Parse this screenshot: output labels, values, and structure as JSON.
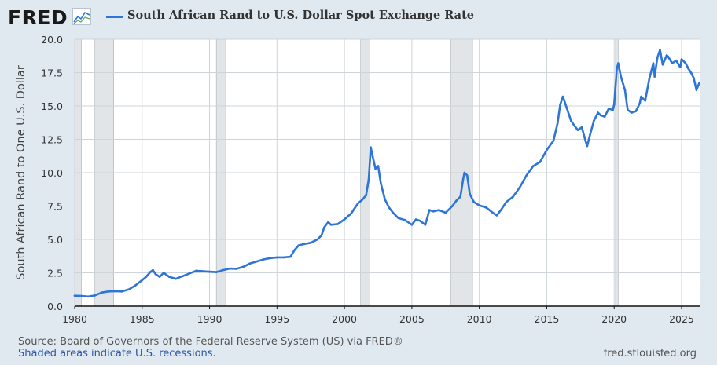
{
  "header": {
    "logo": "FRED",
    "legend_label": "South African Rand to U.S. Dollar Spot Exchange Rate"
  },
  "footer": {
    "source": "Source: Board of Governors of the Federal Reserve System (US) via FRED®",
    "recession_note": "Shaded areas indicate U.S. recessions.",
    "url": "fred.stlouisfed.org"
  },
  "colors": {
    "line": "#2d75d6",
    "recession": "#e1e5e8",
    "background": "#e1e9f0"
  },
  "chart_data": {
    "type": "line",
    "title": "",
    "ylabel": "South African Rand to One U.S. Dollar",
    "xlabel": "",
    "xlim": [
      1980.0,
      2026.4
    ],
    "ylim": [
      0,
      20
    ],
    "xticks": [
      "1980",
      "1985",
      "1990",
      "1995",
      "2000",
      "2005",
      "2010",
      "2015",
      "2020",
      "2025"
    ],
    "yticks": [
      "0.0",
      "2.5",
      "5.0",
      "7.5",
      "10.0",
      "12.5",
      "15.0",
      "17.5",
      "20.0"
    ],
    "grid": true,
    "recessions": [
      [
        1980.0,
        1980.5
      ],
      [
        1981.5,
        1982.9
      ],
      [
        1990.5,
        1991.2
      ],
      [
        2001.2,
        2001.9
      ],
      [
        2007.9,
        2009.5
      ],
      [
        2020.1,
        2020.3
      ]
    ],
    "series": [
      {
        "name": "South African Rand to U.S. Dollar Spot Exchange Rate",
        "x": [
          1980.0,
          1980.5,
          1981.0,
          1981.5,
          1982.0,
          1982.5,
          1983.0,
          1983.5,
          1984.0,
          1984.5,
          1985.0,
          1985.3,
          1985.6,
          1985.8,
          1986.0,
          1986.3,
          1986.6,
          1987.0,
          1987.5,
          1988.0,
          1988.5,
          1989.0,
          1989.5,
          1990.0,
          1990.5,
          1991.0,
          1991.5,
          1992.0,
          1992.5,
          1993.0,
          1993.5,
          1994.0,
          1994.5,
          1995.0,
          1995.5,
          1996.0,
          1996.3,
          1996.6,
          1997.0,
          1997.5,
          1998.0,
          1998.3,
          1998.5,
          1998.8,
          1999.0,
          1999.5,
          2000.0,
          2000.5,
          2001.0,
          2001.3,
          2001.6,
          2001.8,
          2001.95,
          2002.1,
          2002.3,
          2002.5,
          2002.7,
          2003.0,
          2003.3,
          2003.6,
          2004.0,
          2004.5,
          2005.0,
          2005.3,
          2005.6,
          2006.0,
          2006.3,
          2006.6,
          2007.0,
          2007.5,
          2008.0,
          2008.3,
          2008.6,
          2008.8,
          2008.9,
          2009.1,
          2009.3,
          2009.6,
          2010.0,
          2010.5,
          2011.0,
          2011.3,
          2011.6,
          2012.0,
          2012.5,
          2013.0,
          2013.5,
          2014.0,
          2014.5,
          2015.0,
          2015.5,
          2015.8,
          2016.0,
          2016.2,
          2016.5,
          2016.8,
          2017.0,
          2017.3,
          2017.6,
          2017.9,
          2018.0,
          2018.2,
          2018.5,
          2018.8,
          2019.0,
          2019.3,
          2019.6,
          2019.9,
          2020.0,
          2020.2,
          2020.3,
          2020.5,
          2020.8,
          2021.0,
          2021.3,
          2021.6,
          2021.9,
          2022.0,
          2022.3,
          2022.6,
          2022.9,
          2023.0,
          2023.2,
          2023.4,
          2023.6,
          2023.9,
          2024.0,
          2024.3,
          2024.6,
          2024.9,
          2025.0,
          2025.3,
          2025.5,
          2025.7,
          2025.9,
          2026.1,
          2026.3
        ],
        "values": [
          0.78,
          0.76,
          0.72,
          0.8,
          1.02,
          1.1,
          1.12,
          1.1,
          1.25,
          1.55,
          1.95,
          2.2,
          2.55,
          2.7,
          2.4,
          2.2,
          2.5,
          2.2,
          2.05,
          2.25,
          2.45,
          2.65,
          2.62,
          2.58,
          2.55,
          2.7,
          2.82,
          2.8,
          2.95,
          3.2,
          3.35,
          3.5,
          3.6,
          3.65,
          3.65,
          3.7,
          4.2,
          4.55,
          4.65,
          4.75,
          5.0,
          5.3,
          5.9,
          6.3,
          6.1,
          6.15,
          6.5,
          6.95,
          7.7,
          7.95,
          8.3,
          9.5,
          11.9,
          11.2,
          10.3,
          10.5,
          9.2,
          8.0,
          7.4,
          7.0,
          6.6,
          6.45,
          6.1,
          6.5,
          6.4,
          6.1,
          7.2,
          7.1,
          7.2,
          7.0,
          7.5,
          7.9,
          8.2,
          9.5,
          10.0,
          9.8,
          8.4,
          7.8,
          7.55,
          7.4,
          7.0,
          6.8,
          7.2,
          7.8,
          8.2,
          8.9,
          9.8,
          10.5,
          10.8,
          11.7,
          12.4,
          13.7,
          15.1,
          15.7,
          14.8,
          13.9,
          13.6,
          13.2,
          13.4,
          12.3,
          12.0,
          12.8,
          13.9,
          14.5,
          14.3,
          14.2,
          14.8,
          14.7,
          15.1,
          17.8,
          18.2,
          17.2,
          16.2,
          14.7,
          14.5,
          14.6,
          15.2,
          15.7,
          15.4,
          17.0,
          18.2,
          17.2,
          18.6,
          19.2,
          18.1,
          18.8,
          18.7,
          18.2,
          18.4,
          17.9,
          18.5,
          18.2,
          17.8,
          17.5,
          17.1,
          16.2,
          16.7
        ]
      }
    ]
  }
}
